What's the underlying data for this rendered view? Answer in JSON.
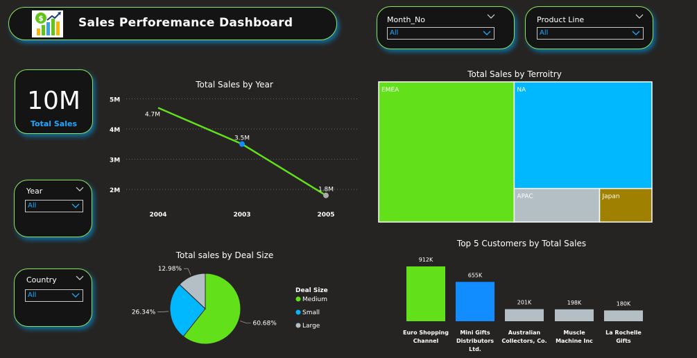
{
  "header": {
    "title": "Sales  Perforemance  Dashboard",
    "logo_icon": "sales-growth-chart-icon"
  },
  "filters": {
    "month": {
      "label": "Month_No",
      "value": "All"
    },
    "product_line": {
      "label": "Product Line",
      "value": "All"
    },
    "year": {
      "label": "Year",
      "value": "All"
    },
    "country": {
      "label": "Country",
      "value": "All"
    }
  },
  "kpi": {
    "value": "10M",
    "label": "Total Sales"
  },
  "colors": {
    "green": "#62e01a",
    "blue": "#01b8ff",
    "grey": "#b3bec5",
    "gold": "#a08000",
    "dark_blue": "#118dff",
    "accent_border": "#8fe35c"
  },
  "chart_data": [
    {
      "type": "line",
      "title": "Total Sales by Year",
      "categories": [
        "2004",
        "2003",
        "2005"
      ],
      "values": [
        4.7,
        3.5,
        1.8
      ],
      "data_labels": [
        "4.7M",
        "3.5M",
        "1.8M"
      ],
      "y_ticks": [
        "5M",
        "4M",
        "3M",
        "2M"
      ],
      "y_tick_values": [
        5,
        4,
        3,
        2
      ],
      "ylim": [
        1.7,
        5.1
      ],
      "grid": true
    },
    {
      "type": "treemap",
      "title": "Total Sales by Terroitry",
      "items": [
        {
          "name": "EMEA",
          "value": 4.98
        },
        {
          "name": "NA",
          "value": 3.85
        },
        {
          "name": "APAC",
          "value": 0.75
        },
        {
          "name": "Japan",
          "value": 0.46
        }
      ]
    },
    {
      "type": "pie",
      "title": "Total sales by Deal Size",
      "legend_title": "Deal Size",
      "legend_position": "right",
      "slices": [
        {
          "name": "Medium",
          "value": 60.68,
          "label": "60.68%"
        },
        {
          "name": "Small",
          "value": 26.34,
          "label": "26.34%"
        },
        {
          "name": "Large",
          "value": 12.98,
          "label": "12.98%"
        }
      ]
    },
    {
      "type": "bar",
      "title": "Top 5 Customers by Total Sales",
      "categories": [
        [
          "Euro Shopping",
          "Channel"
        ],
        [
          "Mini Gifts",
          "Distributors",
          "Ltd."
        ],
        [
          "Australian",
          "Collectors, Co."
        ],
        [
          "Muscle",
          "Machine Inc"
        ],
        [
          "La Rochelle",
          "Gifts"
        ]
      ],
      "values": [
        912,
        655,
        201,
        198,
        180
      ],
      "data_labels": [
        "912K",
        "655K",
        "201K",
        "198K",
        "180K"
      ]
    }
  ]
}
